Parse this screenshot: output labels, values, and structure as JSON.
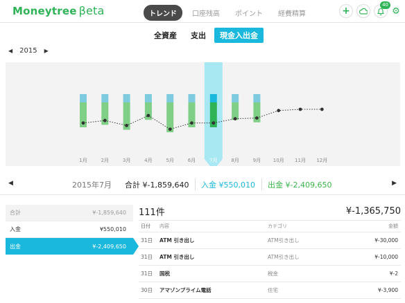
{
  "app": {
    "logo_main": "Moneytree",
    "logo_beta": "βeta"
  },
  "nav": {
    "tabs": [
      {
        "label": "トレンド",
        "active": true
      },
      {
        "label": "口座残高",
        "active": false
      },
      {
        "label": "ポイント",
        "active": false
      },
      {
        "label": "経費精算",
        "active": false
      }
    ],
    "icons": {
      "add": "+",
      "cloud": "☁",
      "bell": "🔔",
      "bell_badge": "40",
      "gear": "⚙"
    }
  },
  "subtabs": [
    {
      "label": "全資産",
      "active": false
    },
    {
      "label": "支出",
      "active": false
    },
    {
      "label": "現金入出金",
      "active": true
    }
  ],
  "year_selector": {
    "prev": "◀",
    "year": "2015",
    "next": "▶"
  },
  "chart_data": {
    "type": "bar",
    "categories": [
      "1月",
      "2月",
      "3月",
      "4月",
      "5月",
      "6月",
      "7月",
      "8月",
      "9月",
      "10月",
      "11月",
      "12月"
    ],
    "selected_index": 6,
    "series": [
      {
        "values": [
          1,
          1,
          1,
          1,
          1,
          1,
          1,
          1,
          1,
          null,
          null,
          null
        ]
      },
      {
        "values": [
          -1,
          -0.9,
          -1.1,
          -0.7,
          -1.2,
          -1,
          -1,
          -0.7,
          -0.8,
          null,
          null,
          null
        ]
      },
      {
        "values": [
          -0.55,
          -0.45,
          -0.65,
          -0.25,
          -0.8,
          -0.55,
          -0.55,
          -0.38,
          -0.35,
          -0.05,
          0,
          0
        ]
      }
    ],
    "colors": {
      "income": "#7ecbe0",
      "expense": "#7fcf86",
      "net_line": "#333333",
      "highlight": "#a8e8f2",
      "selected_income": "#1bb8de",
      "selected_expense": "#2fb357"
    }
  },
  "summary": {
    "prev": "◀",
    "month": "2015年7月",
    "total_label": "合計",
    "total_value": "¥-1,859,640",
    "income_label": "入金",
    "income_value": "¥550,010",
    "outgo_label": "出金",
    "outgo_value": "¥-2,409,650",
    "next": "▶"
  },
  "left_list": [
    {
      "label": "合計",
      "value": "¥-1,859,640",
      "style": "first"
    },
    {
      "label": "入金",
      "value": "¥550,010",
      "style": "normal"
    },
    {
      "label": "出金",
      "value": "¥-2,409,650",
      "style": "active"
    }
  ],
  "table": {
    "count": "111件",
    "total": "¥-1,365,750",
    "headers": {
      "date": "日付",
      "desc": "内容",
      "category": "カテゴリ",
      "amount": "金額"
    },
    "rows": [
      {
        "date": "31日",
        "desc": "ATM 引き出し",
        "category": "ATM引き出し",
        "amount": "¥-30,000"
      },
      {
        "date": "31日",
        "desc": "ATM 引き出し",
        "category": "ATM引き出し",
        "amount": "¥-10,000"
      },
      {
        "date": "31日",
        "desc": "国税",
        "category": "税金",
        "amount": "¥-2"
      },
      {
        "date": "30日",
        "desc": "アマゾンプライム電話",
        "category": "住宅",
        "amount": "¥-3,900"
      }
    ]
  }
}
